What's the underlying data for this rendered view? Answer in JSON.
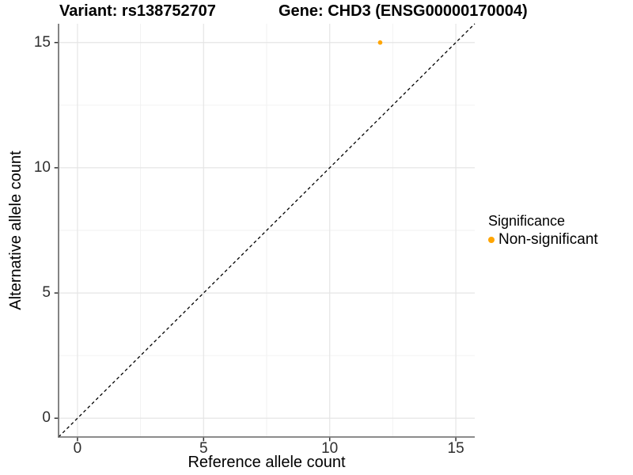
{
  "header": {
    "title_left": "Variant: rs138752707",
    "title_right": "Gene: CHD3 (ENSG00000170004)"
  },
  "chart_data": {
    "type": "scatter",
    "xlabel": "Reference allele count",
    "ylabel": "Alternative allele count",
    "xlim": [
      -0.75,
      15.75
    ],
    "ylim": [
      -0.75,
      15.75
    ],
    "x_major_ticks": [
      0,
      5,
      10,
      15
    ],
    "y_major_ticks": [
      0,
      5,
      10,
      15
    ],
    "x_minor_ticks": [
      2.5,
      7.5,
      12.5
    ],
    "y_minor_ticks": [
      2.5,
      7.5,
      12.5
    ],
    "grid": true,
    "legend_position": "right",
    "identity_line": {
      "type": "y = x",
      "linetype": "dashed",
      "color": "#000000"
    },
    "points": [
      {
        "x": 12,
        "y": 15,
        "series": "Non-significant"
      }
    ],
    "legend": {
      "title": "Significance",
      "entries": [
        {
          "label": "Non-significant",
          "color": "#FFA500"
        }
      ]
    },
    "colors": {
      "point": "#FFA500",
      "grid_major": "#E5E5E5",
      "grid_minor": "#F2F2F2",
      "axis_line": "#666666",
      "tick_mark": "#333333",
      "tick_text": "#2e2e2e"
    }
  }
}
